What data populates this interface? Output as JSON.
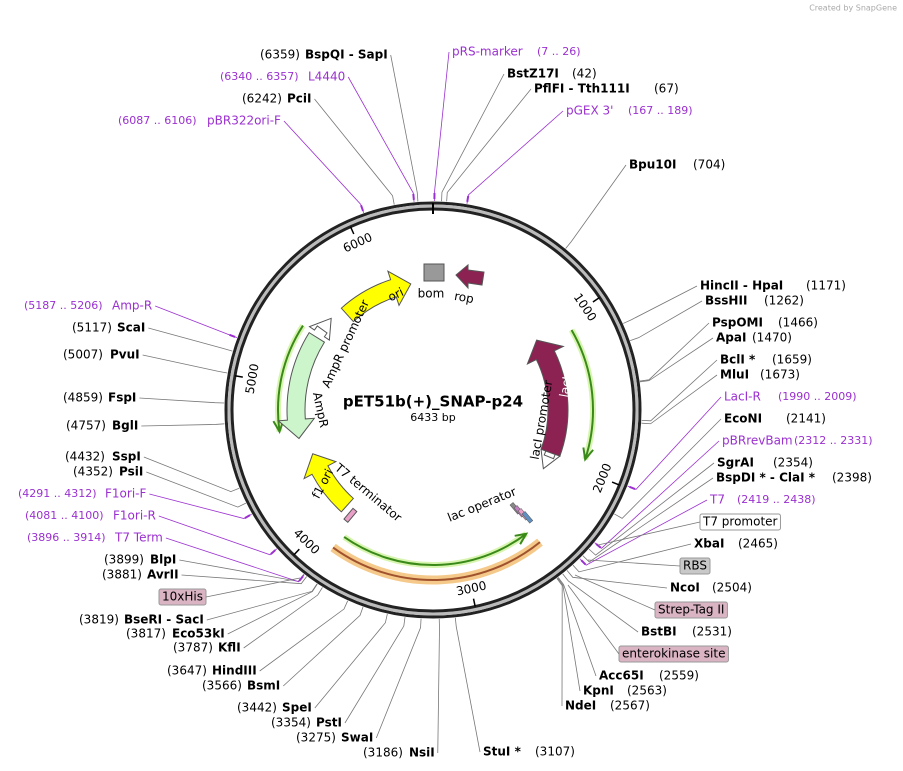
{
  "credit": "Created by SnapGene",
  "map": {
    "name": "pET51b(+)_SNAP-p24",
    "length": "6433 bp",
    "ticks": [
      "1000",
      "2000",
      "3000",
      "4000",
      "5000",
      "6000"
    ]
  },
  "sites": [
    {
      "name": "BspQI - SapI",
      "position": "(6359)"
    },
    {
      "name": "PciI",
      "position": "(6242)"
    },
    {
      "name": "BstZ17I",
      "position": "(42)"
    },
    {
      "name": "PflFI - Tth111I",
      "position": "(67)"
    },
    {
      "name": "Bpu10I",
      "position": "(704)"
    },
    {
      "name": "HincII - HpaI",
      "position": "(1171)"
    },
    {
      "name": "BssHII",
      "position": "(1262)"
    },
    {
      "name": "PspOMI",
      "position": "(1466)"
    },
    {
      "name": "ApaI",
      "position": "(1470)"
    },
    {
      "name": "BclI *",
      "position": "(1659)"
    },
    {
      "name": "MluI",
      "position": "(1673)"
    },
    {
      "name": "EcoNI",
      "position": "(2141)"
    },
    {
      "name": "SgrAI",
      "position": "(2354)"
    },
    {
      "name": "BspDI * - ClaI *",
      "position": "(2398)"
    },
    {
      "name": "XbaI",
      "position": "(2465)"
    },
    {
      "name": "NcoI",
      "position": "(2504)"
    },
    {
      "name": "BstBI",
      "position": "(2531)"
    },
    {
      "name": "Acc65I",
      "position": "(2559)"
    },
    {
      "name": "KpnI",
      "position": "(2563)"
    },
    {
      "name": "NdeI",
      "position": "(2567)"
    },
    {
      "name": "StuI *",
      "position": "(3107)"
    },
    {
      "name": "NsiI",
      "position": "(3186)"
    },
    {
      "name": "SwaI",
      "position": "(3275)"
    },
    {
      "name": "PstI",
      "position": "(3354)"
    },
    {
      "name": "SpeI",
      "position": "(3442)"
    },
    {
      "name": "BsmI",
      "position": "(3566)"
    },
    {
      "name": "HindIII",
      "position": "(3647)"
    },
    {
      "name": "KflI",
      "position": "(3787)"
    },
    {
      "name": "Eco53kI",
      "position": "(3817)"
    },
    {
      "name": "BseRI - SacI",
      "position": "(3819)"
    },
    {
      "name": "AvrII",
      "position": "(3881)"
    },
    {
      "name": "BlpI",
      "position": "(3899)"
    },
    {
      "name": "PsiI",
      "position": "(4352)"
    },
    {
      "name": "SspI",
      "position": "(4432)"
    },
    {
      "name": "BglI",
      "position": "(4757)"
    },
    {
      "name": "FspI",
      "position": "(4859)"
    },
    {
      "name": "PvuI",
      "position": "(5007)"
    },
    {
      "name": "ScaI",
      "position": "(5117)"
    }
  ],
  "primers": [
    {
      "name": "pRS-marker",
      "range": "(7 .. 26)"
    },
    {
      "name": "L4440",
      "range": "(6340 .. 6357)"
    },
    {
      "name": "pGEX 3'",
      "range": "(167 .. 189)"
    },
    {
      "name": "pBR322ori-F",
      "range": "(6087 .. 6106)"
    },
    {
      "name": "Amp-R",
      "range": "(5187 .. 5206)"
    },
    {
      "name": "LacI-R",
      "range": "(1990 .. 2009)"
    },
    {
      "name": "pBRrevBam",
      "range": "(2312 .. 2331)"
    },
    {
      "name": "T7",
      "range": "(2419 .. 2438)"
    },
    {
      "name": "F1ori-F",
      "range": "(4291 .. 4312)"
    },
    {
      "name": "F1ori-R",
      "range": "(4081 .. 4100)"
    },
    {
      "name": "T7 Term",
      "range": "(3896 .. 3914)"
    }
  ],
  "tagged_features": [
    "T7 promoter",
    "RBS",
    "Strep-Tag II",
    "enterokinase site",
    "10xHis"
  ],
  "features": [
    "ori",
    "bom",
    "rop",
    "AmpR promoter",
    "AmpR",
    "lacI",
    "lacI promoter",
    "lac operator",
    "T7 terminator",
    "f1 ori"
  ]
}
